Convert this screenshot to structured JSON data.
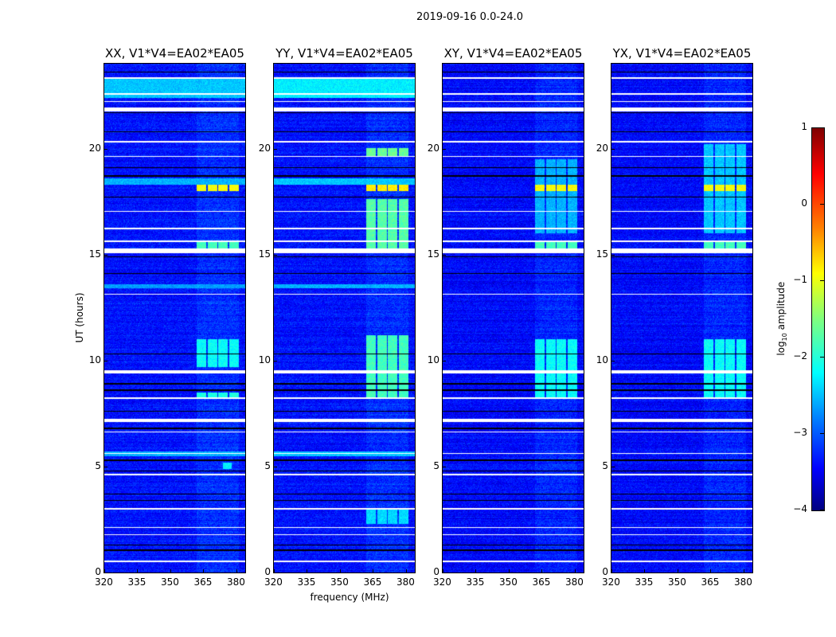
{
  "chart_data": {
    "type": "heatmap",
    "title": "2019-09-16 0.0-24.0",
    "xlabel": "frequency (MHz)",
    "ylabel": "UT (hours)",
    "xlim": [
      320,
      384
    ],
    "ylim": [
      0,
      24
    ],
    "xticks": [
      320,
      335,
      350,
      365,
      380
    ],
    "yticks": [
      0,
      5,
      10,
      15,
      20
    ],
    "colormap": "jet",
    "colorbar": {
      "label_prefix": "log",
      "label_sub": "10",
      "label_suffix": " amplitude",
      "range": [
        -4,
        1
      ],
      "ticks": [
        1,
        0,
        -1,
        -2,
        -3,
        -4
      ]
    },
    "flagged_hours": [
      [
        21.75,
        21.95
      ],
      [
        23.3,
        23.35
      ],
      [
        22.2,
        22.25
      ],
      [
        22.55,
        22.6
      ],
      [
        20.3,
        20.35
      ],
      [
        19.6,
        19.65
      ],
      [
        17.0,
        17.05
      ],
      [
        16.2,
        16.25
      ],
      [
        15.05,
        15.3
      ],
      [
        15.6,
        15.65
      ],
      [
        13.1,
        13.15
      ],
      [
        9.4,
        9.55
      ],
      [
        8.2,
        8.25
      ],
      [
        7.1,
        7.25
      ],
      [
        6.6,
        6.65
      ],
      [
        5.6,
        5.65
      ],
      [
        4.6,
        4.65
      ],
      [
        2.95,
        3.05
      ],
      [
        2.1,
        2.15
      ],
      [
        1.75,
        1.8
      ],
      [
        0.5,
        0.55
      ]
    ],
    "separator_hours": [
      23.6,
      21.7,
      20.8,
      19.1,
      18.7,
      17.7,
      14.9,
      14.1,
      10.3,
      8.9,
      8.6,
      7.6,
      6.8,
      5.3,
      4.8,
      3.7,
      3.4,
      1.3,
      1.05
    ],
    "panels": [
      {
        "title": "XX, V1*V4=EA02*EA05",
        "background": -3.3,
        "regions": [
          {
            "t": [
              22.4,
              23.3
            ],
            "f": [
              320,
              384
            ],
            "v": -2.4
          },
          {
            "t": [
              18.3,
              18.6
            ],
            "f": [
              320,
              384
            ],
            "v": -2.5
          },
          {
            "t": [
              13.4,
              13.6
            ],
            "f": [
              320,
              384
            ],
            "v": -2.6
          },
          {
            "t": [
              5.5,
              5.7
            ],
            "f": [
              320,
              384
            ],
            "v": -2.5
          },
          {
            "t": [
              18.0,
              18.3
            ],
            "f": [
              362,
              381
            ],
            "v": -0.9
          },
          {
            "t": [
              15.2,
              15.6
            ],
            "f": [
              362,
              381
            ],
            "v": -1.8
          },
          {
            "t": [
              9.7,
              11.0
            ],
            "f": [
              362,
              381
            ],
            "v": -2.1
          },
          {
            "t": [
              8.2,
              8.5
            ],
            "f": [
              362,
              381
            ],
            "v": -2.0
          },
          {
            "t": [
              4.9,
              5.2
            ],
            "f": [
              374,
              378
            ],
            "v": -2.2
          }
        ]
      },
      {
        "title": "YY, V1*V4=EA02*EA05",
        "background": -3.3,
        "regions": [
          {
            "t": [
              22.4,
              23.3
            ],
            "f": [
              320,
              384
            ],
            "v": -2.2
          },
          {
            "t": [
              18.3,
              18.6
            ],
            "f": [
              320,
              384
            ],
            "v": -2.4
          },
          {
            "t": [
              13.4,
              13.6
            ],
            "f": [
              320,
              384
            ],
            "v": -2.5
          },
          {
            "t": [
              5.5,
              5.7
            ],
            "f": [
              320,
              384
            ],
            "v": -2.4
          },
          {
            "t": [
              19.6,
              20.0
            ],
            "f": [
              362,
              381
            ],
            "v": -1.6
          },
          {
            "t": [
              18.0,
              18.3
            ],
            "f": [
              362,
              381
            ],
            "v": -0.8
          },
          {
            "t": [
              15.2,
              17.6
            ],
            "f": [
              362,
              381
            ],
            "v": -1.7
          },
          {
            "t": [
              8.2,
              11.2
            ],
            "f": [
              362,
              381
            ],
            "v": -1.8
          },
          {
            "t": [
              2.3,
              3.0
            ],
            "f": [
              362,
              381
            ],
            "v": -2.3
          }
        ]
      },
      {
        "title": "XY, V1*V4=EA02*EA05",
        "background": -3.35,
        "regions": [
          {
            "t": [
              18.0,
              18.3
            ],
            "f": [
              362,
              381
            ],
            "v": -0.9
          },
          {
            "t": [
              15.2,
              15.6
            ],
            "f": [
              362,
              381
            ],
            "v": -1.8
          },
          {
            "t": [
              8.2,
              11.0
            ],
            "f": [
              362,
              381
            ],
            "v": -2.1
          },
          {
            "t": [
              16.0,
              19.5
            ],
            "f": [
              362,
              381
            ],
            "v": -2.5
          }
        ]
      },
      {
        "title": "YX, V1*V4=EA02*EA05",
        "background": -3.35,
        "regions": [
          {
            "t": [
              18.0,
              18.3
            ],
            "f": [
              362,
              381
            ],
            "v": -0.9
          },
          {
            "t": [
              15.2,
              15.6
            ],
            "f": [
              362,
              381
            ],
            "v": -1.8
          },
          {
            "t": [
              8.2,
              11.0
            ],
            "f": [
              362,
              381
            ],
            "v": -2.1
          },
          {
            "t": [
              16.0,
              20.2
            ],
            "f": [
              362,
              381
            ],
            "v": -2.4
          }
        ]
      }
    ]
  }
}
